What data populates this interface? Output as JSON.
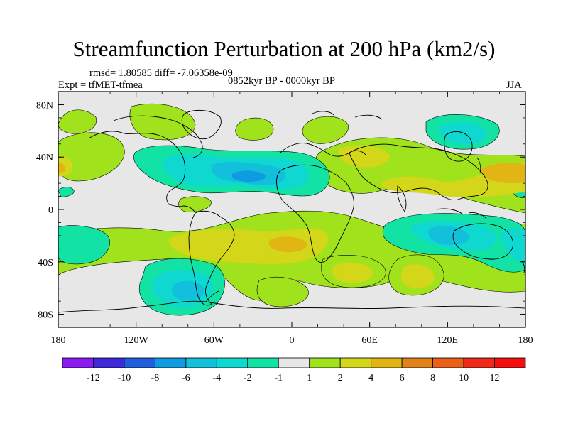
{
  "title": "Streamfunction Perturbation at 200 hPa (km2/s)",
  "stats": "rmsd= 1.80585 diff= -7.06358e-09",
  "experiment": "Expt = tfMET-tfmea",
  "period": "0852kyr BP - 0000kyr BP",
  "season": "JJA",
  "lat_ticks": [
    "80N",
    "40N",
    "0",
    "40S",
    "80S"
  ],
  "lon_ticks": [
    "180",
    "120W",
    "60W",
    "0",
    "60E",
    "120E",
    "180"
  ],
  "colorbar": {
    "labels": [
      "-12",
      "-10",
      "-8",
      "-6",
      "-4",
      "-2",
      "-1",
      "1",
      "2",
      "4",
      "6",
      "8",
      "10",
      "12"
    ],
    "colors": [
      "#8b19f2",
      "#3f29d9",
      "#1f5fdc",
      "#0f9be0",
      "#13c0dc",
      "#0fd8d1",
      "#13e2a5",
      "#e7e7e7",
      "#a0e21c",
      "#d3d619",
      "#e2b514",
      "#e2821a",
      "#ec5f19",
      "#f02a19",
      "#f50e0e"
    ]
  },
  "field_colors": {
    "neutral": "#e7e7e7",
    "neg1": "#13e2a5",
    "neg2": "#0fd8d1",
    "neg4": "#13c0dc",
    "neg6": "#0f9be0",
    "pos1": "#a0e21c",
    "pos2": "#d3d619",
    "pos4": "#e2b514"
  }
}
